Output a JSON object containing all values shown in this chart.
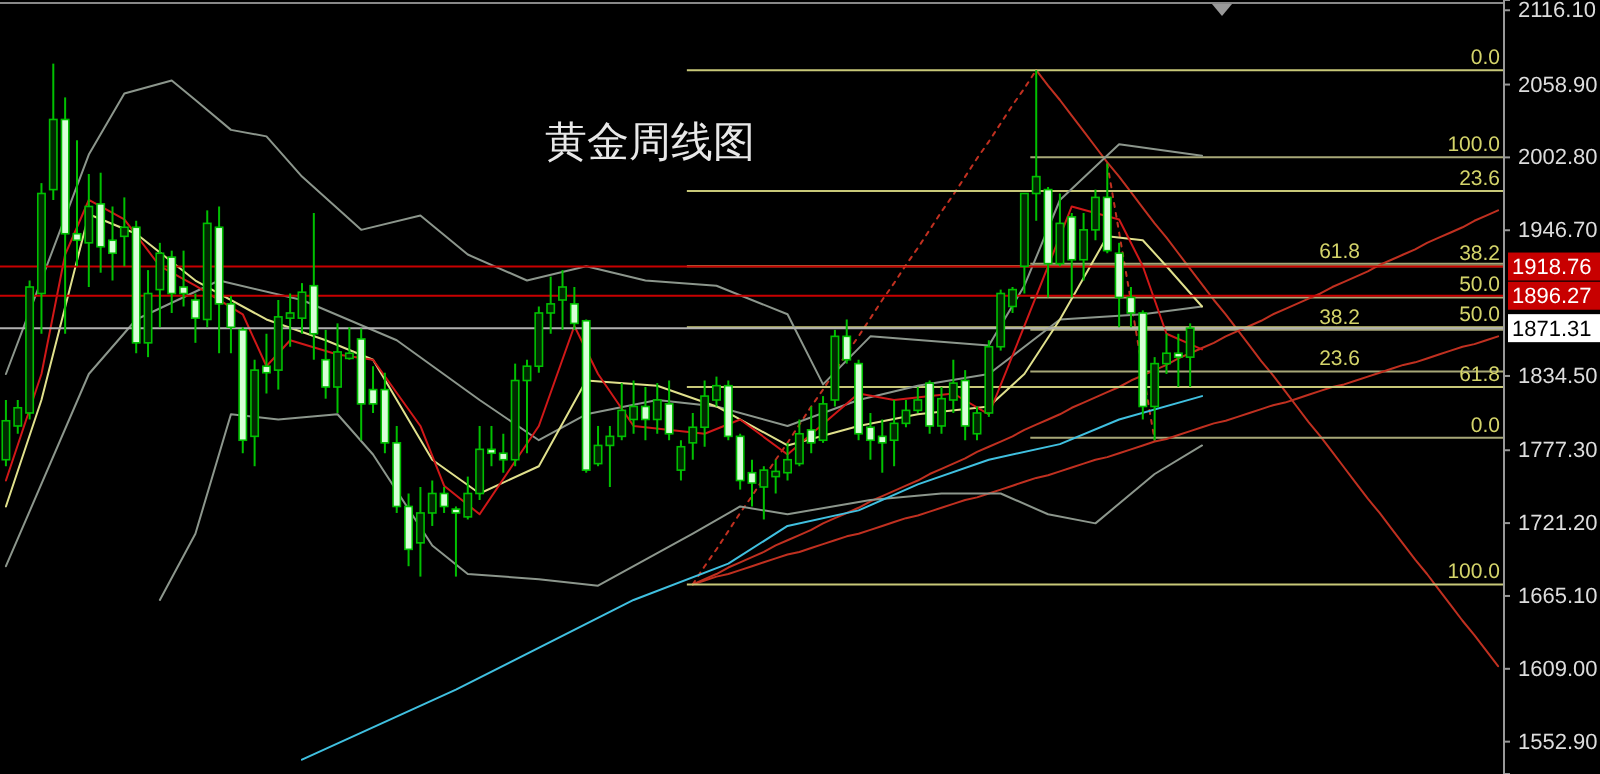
{
  "chart_data": [
    {
      "type": "candlestick",
      "title": "黄金周线图",
      "tick_labels": false,
      "color": "#00c000",
      "ylim": [
        1528,
        2124
      ],
      "categories": [
        null,
        null,
        null,
        null,
        null,
        null,
        null,
        null,
        null,
        null,
        null,
        null,
        null,
        null,
        null,
        null,
        null,
        null,
        null,
        null,
        null,
        null,
        null,
        null,
        null,
        null,
        null,
        null,
        null,
        null,
        null,
        null,
        null,
        null,
        null,
        null,
        null,
        null,
        null,
        null,
        null,
        null,
        null,
        null,
        null,
        null,
        null,
        null,
        null,
        null,
        null,
        null,
        null,
        null,
        null,
        null,
        null,
        null,
        null,
        null,
        null,
        null,
        null,
        null,
        null,
        null,
        null,
        null,
        null,
        null,
        null,
        null,
        null,
        null,
        null,
        null,
        null,
        null,
        null,
        null,
        null,
        null,
        null,
        null,
        null,
        null,
        null,
        null,
        null,
        null,
        null,
        null,
        null,
        null,
        null,
        null,
        null,
        null,
        null,
        null,
        null
      ],
      "ohlc": [
        [
          1770,
          1816,
          1765,
          1800
        ],
        [
          1796,
          1816,
          1790,
          1810
        ],
        [
          1806,
          1908,
          1801,
          1903
        ],
        [
          1898,
          1983,
          1867,
          1975
        ],
        [
          1978,
          2075,
          1970,
          2032
        ],
        [
          2032,
          2049,
          1867,
          1944
        ],
        [
          1944,
          2016,
          1919,
          1939
        ],
        [
          1937,
          1990,
          1903,
          1965
        ],
        [
          1967,
          1991,
          1914,
          1934
        ],
        [
          1939,
          1965,
          1908,
          1929
        ],
        [
          1942,
          1972,
          1919,
          1949
        ],
        [
          1949,
          1954,
          1852,
          1860
        ],
        [
          1860,
          1916,
          1849,
          1898
        ],
        [
          1901,
          1937,
          1872,
          1929
        ],
        [
          1926,
          1931,
          1883,
          1898
        ],
        [
          1903,
          1931,
          1888,
          1898
        ],
        [
          1893,
          1898,
          1860,
          1879
        ],
        [
          1878,
          1962,
          1872,
          1952
        ],
        [
          1949,
          1965,
          1852,
          1890
        ],
        [
          1890,
          1896,
          1852,
          1872
        ],
        [
          1870,
          1872,
          1775,
          1785
        ],
        [
          1788,
          1847,
          1765,
          1839
        ],
        [
          1842,
          1867,
          1821,
          1837
        ],
        [
          1839,
          1893,
          1824,
          1880
        ],
        [
          1879,
          1898,
          1857,
          1883
        ],
        [
          1879,
          1906,
          1867,
          1899
        ],
        [
          1904,
          1960,
          1847,
          1867
        ],
        [
          1847,
          1870,
          1817,
          1826
        ],
        [
          1826,
          1875,
          1806,
          1853
        ],
        [
          1848,
          1872,
          1847,
          1852
        ],
        [
          1863,
          1871,
          1785,
          1813
        ],
        [
          1824,
          1842,
          1806,
          1813
        ],
        [
          1824,
          1837,
          1775,
          1783
        ],
        [
          1783,
          1796,
          1729,
          1734
        ],
        [
          1734,
          1744,
          1688,
          1701
        ],
        [
          1706,
          1749,
          1680,
          1729
        ],
        [
          1729,
          1754,
          1719,
          1744
        ],
        [
          1744,
          1749,
          1729,
          1734
        ],
        [
          1732,
          1734,
          1680,
          1729
        ],
        [
          1726,
          1757,
          1724,
          1744
        ],
        [
          1744,
          1796,
          1739,
          1778
        ],
        [
          1778,
          1796,
          1765,
          1775
        ],
        [
          1775,
          1790,
          1760,
          1770
        ],
        [
          1770,
          1844,
          1765,
          1831
        ],
        [
          1831,
          1847,
          1775,
          1842
        ],
        [
          1842,
          1888,
          1837,
          1883
        ],
        [
          1883,
          1911,
          1867,
          1890
        ],
        [
          1893,
          1916,
          1870,
          1903
        ],
        [
          1890,
          1903,
          1870,
          1875
        ],
        [
          1877,
          1878,
          1760,
          1762
        ],
        [
          1767,
          1796,
          1765,
          1781
        ],
        [
          1781,
          1796,
          1749,
          1788
        ],
        [
          1788,
          1829,
          1785,
          1808
        ],
        [
          1801,
          1831,
          1790,
          1811
        ],
        [
          1811,
          1826,
          1785,
          1801
        ],
        [
          1801,
          1829,
          1790,
          1816
        ],
        [
          1813,
          1831,
          1785,
          1790
        ],
        [
          1762,
          1785,
          1754,
          1780
        ],
        [
          1783,
          1806,
          1770,
          1795
        ],
        [
          1795,
          1831,
          1780,
          1819
        ],
        [
          1816,
          1834,
          1811,
          1827
        ],
        [
          1827,
          1831,
          1785,
          1788
        ],
        [
          1788,
          1790,
          1747,
          1754
        ],
        [
          1760,
          1770,
          1734,
          1752
        ],
        [
          1749,
          1765,
          1724,
          1762
        ],
        [
          1757,
          1770,
          1744,
          1761
        ],
        [
          1760,
          1783,
          1754,
          1770
        ],
        [
          1767,
          1801,
          1765,
          1790
        ],
        [
          1793,
          1811,
          1775,
          1783
        ],
        [
          1785,
          1819,
          1783,
          1813
        ],
        [
          1816,
          1870,
          1811,
          1865
        ],
        [
          1865,
          1878,
          1844,
          1847
        ],
        [
          1844,
          1847,
          1785,
          1790
        ],
        [
          1795,
          1806,
          1770,
          1785
        ],
        [
          1788,
          1801,
          1760,
          1783
        ],
        [
          1785,
          1816,
          1765,
          1798
        ],
        [
          1798,
          1816,
          1795,
          1808
        ],
        [
          1808,
          1826,
          1806,
          1816
        ],
        [
          1829,
          1831,
          1790,
          1796
        ],
        [
          1796,
          1826,
          1790,
          1817
        ],
        [
          1816,
          1847,
          1806,
          1829
        ],
        [
          1831,
          1839,
          1785,
          1796
        ],
        [
          1790,
          1811,
          1785,
          1806
        ],
        [
          1806,
          1862,
          1803,
          1857
        ],
        [
          1857,
          1901,
          1854,
          1898
        ],
        [
          1888,
          1903,
          1883,
          1901
        ],
        [
          1919,
          1975,
          1898,
          1975
        ],
        [
          1975,
          2070,
          1954,
          1988
        ],
        [
          1978,
          1980,
          1895,
          1921
        ],
        [
          1921,
          1975,
          1919,
          1952
        ],
        [
          1957,
          1960,
          1895,
          1924
        ],
        [
          1924,
          1960,
          1908,
          1947
        ],
        [
          1947,
          1978,
          1939,
          1972
        ],
        [
          1972,
          1998,
          1929,
          1931
        ],
        [
          1929,
          1937,
          1872,
          1895
        ],
        [
          1895,
          1903,
          1872,
          1883
        ],
        [
          1883,
          1885,
          1801,
          1811
        ],
        [
          1811,
          1849,
          1785,
          1844
        ],
        [
          1844,
          1867,
          1836,
          1852
        ],
        [
          1852,
          1867,
          1826,
          1849
        ],
        [
          1849,
          1875,
          1826,
          1871.31
        ]
      ]
    },
    {
      "type": "line",
      "tick_labels": "y",
      "ylim": [
        1528,
        2124
      ],
      "yticks": [
        {
          "value": 2116.1,
          "label": "2116.10"
        },
        {
          "value": 2058.9,
          "label": "2058.90"
        },
        {
          "value": 2002.8,
          "label": "2002.80"
        },
        {
          "value": 1946.7,
          "label": "1946.70"
        },
        {
          "value": 1834.5,
          "label": "1834.50"
        },
        {
          "value": 1777.3,
          "label": "1777.30"
        },
        {
          "value": 1721.2,
          "label": "1721.20"
        },
        {
          "value": 1665.1,
          "label": "1665.10"
        },
        {
          "value": 1609.0,
          "label": "1609.00"
        },
        {
          "value": 1552.9,
          "label": "1552.90"
        }
      ],
      "ref_lines": [
        {
          "axis": "y",
          "value": 1918.76,
          "label": "1918.76",
          "color": "#c80000"
        },
        {
          "axis": "y",
          "value": 1896.27,
          "label": "1896.27",
          "color": "#c80000"
        },
        {
          "axis": "y",
          "value": 1871.31,
          "label": "1871.31",
          "color": "#b0b0b0"
        }
      ],
      "categories": [
        null,
        null,
        null,
        null,
        null,
        null,
        null,
        null,
        null,
        null,
        null,
        null,
        null,
        null,
        null,
        null,
        null,
        null,
        null,
        null,
        null,
        null,
        null,
        null,
        null,
        null,
        null,
        null,
        null,
        null,
        null,
        null,
        null,
        null,
        null,
        null,
        null,
        null,
        null,
        null,
        null,
        null,
        null,
        null,
        null,
        null,
        null,
        null,
        null,
        null,
        null,
        null,
        null,
        null,
        null,
        null,
        null,
        null,
        null,
        null,
        null,
        null,
        null,
        null,
        null,
        null,
        null,
        null,
        null,
        null,
        null,
        null,
        null,
        null,
        null,
        null,
        null,
        null,
        null,
        null,
        null,
        null,
        null,
        null,
        null,
        null,
        null,
        null,
        null,
        null,
        null,
        null,
        null,
        null,
        null,
        null,
        null,
        null,
        null,
        null,
        null,
        null,
        null,
        null,
        null,
        null,
        null,
        null,
        null,
        null,
        null,
        null,
        null,
        null,
        null,
        null,
        null,
        null,
        null,
        null,
        null,
        null,
        null,
        null,
        null,
        null,
        null
      ],
      "series": [
        {
          "color": "#8c968c",
          "values": [
            1836,
            null,
            null,
            null,
            null,
            null,
            null,
            2005,
            null,
            null,
            2052,
            null,
            null,
            null,
            2062,
            null,
            2047,
            null,
            null,
            2024,
            null,
            null,
            2019,
            null,
            null,
            1988,
            null,
            null,
            null,
            null,
            1947,
            null,
            null,
            null,
            null,
            1958,
            null,
            null,
            null,
            1928,
            null,
            null,
            null,
            null,
            1908,
            null,
            null,
            null,
            null,
            1919,
            null,
            null,
            null,
            null,
            1908,
            null,
            null,
            null,
            null,
            null,
            1904,
            null,
            null,
            null,
            null,
            null,
            1882,
            null,
            null,
            1828,
            null,
            null,
            null,
            1865,
            null,
            null,
            null,
            null,
            null,
            null,
            null,
            null,
            null,
            1858,
            null,
            null,
            1904,
            null,
            null,
            1970,
            null,
            null,
            null,
            null,
            2013,
            null,
            null,
            null,
            null,
            null,
            null,
            2004,
            null,
            null,
            null,
            null,
            null,
            null,
            null,
            null,
            null,
            null,
            null,
            null,
            null,
            null,
            null,
            null,
            null,
            null,
            null,
            null,
            null,
            null,
            null,
            null,
            null
          ]
        },
        {
          "color": "#8c968c",
          "values": [
            1688,
            null,
            null,
            null,
            null,
            null,
            null,
            1836,
            null,
            null,
            null,
            1878,
            null,
            null,
            null,
            null,
            null,
            null,
            1908,
            null,
            null,
            null,
            null,
            null,
            null,
            1893,
            null,
            null,
            null,
            null,
            null,
            null,
            null,
            1862,
            null,
            null,
            null,
            null,
            null,
            null,
            1816,
            null,
            null,
            null,
            null,
            1785,
            null,
            null,
            null,
            1805,
            null,
            null,
            null,
            null,
            null,
            1816,
            null,
            null,
            null,
            null,
            1811,
            null,
            null,
            null,
            null,
            null,
            1796,
            null,
            null,
            null,
            null,
            null,
            1816,
            null,
            null,
            null,
            null,
            1827,
            null,
            null,
            null,
            null,
            null,
            1836,
            null,
            null,
            null,
            null,
            null,
            1878,
            null,
            null,
            null,
            null,
            null,
            null,
            1882,
            null,
            null,
            null,
            null,
            1888,
            null,
            null,
            null,
            null,
            null,
            null,
            null,
            null,
            null,
            null,
            null,
            null,
            null,
            null,
            null,
            null,
            null,
            null,
            null,
            null,
            null,
            null,
            null,
            null,
            null
          ]
        },
        {
          "color": "#8c968c",
          "values": [
            null,
            null,
            null,
            null,
            null,
            null,
            null,
            null,
            null,
            null,
            null,
            null,
            null,
            1662,
            null,
            null,
            1713,
            null,
            null,
            1805,
            null,
            null,
            null,
            1801,
            null,
            null,
            null,
            null,
            1805,
            null,
            null,
            1774,
            null,
            null,
            null,
            null,
            1704,
            null,
            null,
            1682,
            null,
            null,
            null,
            null,
            null,
            1678,
            null,
            null,
            null,
            null,
            1673,
            null,
            null,
            null,
            null,
            1698,
            null,
            null,
            1713,
            null,
            null,
            null,
            1734,
            null,
            null,
            null,
            1728,
            null,
            null,
            null,
            null,
            null,
            null,
            1739,
            null,
            null,
            null,
            null,
            null,
            1744,
            null,
            null,
            null,
            null,
            1744,
            null,
            null,
            null,
            1728,
            null,
            null,
            null,
            1721,
            null,
            null,
            null,
            null,
            1759,
            null,
            null,
            null,
            1781,
            null,
            null,
            null,
            null,
            null,
            null,
            null,
            null,
            null,
            null,
            null,
            null,
            null,
            null,
            null,
            null,
            null,
            null,
            null,
            null,
            null,
            null,
            null,
            null,
            null
          ]
        },
        {
          "color": "#e0e08c",
          "values": [
            1734,
            null,
            null,
            1816,
            null,
            null,
            null,
            1959,
            null,
            null,
            null,
            1944,
            null,
            null,
            null,
            null,
            1908,
            null,
            null,
            null,
            null,
            null,
            1878,
            null,
            null,
            null,
            null,
            1862,
            null,
            null,
            null,
            1847,
            null,
            null,
            null,
            null,
            1770,
            null,
            null,
            null,
            1744,
            null,
            null,
            null,
            null,
            1765,
            null,
            null,
            null,
            1831,
            null,
            null,
            null,
            null,
            null,
            1827,
            null,
            null,
            null,
            null,
            1811,
            null,
            null,
            null,
            null,
            null,
            1781,
            null,
            null,
            null,
            null,
            null,
            1796,
            null,
            null,
            null,
            null,
            1805,
            null,
            null,
            null,
            null,
            null,
            1811,
            null,
            null,
            1836,
            null,
            null,
            1878,
            null,
            null,
            null,
            1942,
            null,
            null,
            1939,
            null,
            1919,
            null,
            null,
            1888,
            null,
            null,
            null,
            null,
            null,
            null,
            null,
            null,
            null,
            null,
            null,
            null,
            null,
            null,
            null,
            null,
            null,
            null,
            null,
            null,
            null,
            null,
            null,
            null,
            null
          ]
        },
        {
          "color": "#d01818",
          "values": [
            1754,
            null,
            null,
            1836,
            null,
            1928,
            null,
            1970,
            null,
            null,
            1955,
            null,
            null,
            1919,
            null,
            null,
            1904,
            null,
            null,
            null,
            1882,
            null,
            1842,
            null,
            1862,
            null,
            null,
            null,
            1851,
            null,
            null,
            1847,
            null,
            null,
            null,
            1796,
            null,
            1750,
            null,
            null,
            1728,
            null,
            null,
            null,
            null,
            1796,
            null,
            null,
            1873,
            null,
            1836,
            null,
            null,
            1796,
            null,
            null,
            null,
            null,
            null,
            1790,
            null,
            null,
            1801,
            null,
            null,
            null,
            1774,
            null,
            null,
            null,
            null,
            null,
            1821,
            null,
            null,
            1816,
            null,
            null,
            null,
            null,
            1821,
            null,
            null,
            1805,
            null,
            null,
            1873,
            null,
            null,
            null,
            1965,
            null,
            null,
            null,
            1955,
            null,
            1919,
            null,
            1867,
            null,
            null,
            1855,
            null,
            null,
            null,
            null,
            null,
            null,
            null,
            null,
            null,
            null,
            null,
            null,
            null,
            null,
            null,
            null,
            null,
            null,
            null,
            null,
            null,
            null,
            null,
            null,
            null
          ]
        },
        {
          "color": "#40c0e0",
          "values": [
            null,
            null,
            null,
            null,
            null,
            null,
            null,
            null,
            null,
            null,
            null,
            null,
            null,
            null,
            null,
            null,
            null,
            null,
            null,
            null,
            null,
            null,
            null,
            null,
            null,
            1539,
            null,
            null,
            null,
            null,
            null,
            null,
            null,
            null,
            null,
            null,
            null,
            null,
            1593,
            null,
            null,
            null,
            null,
            null,
            null,
            null,
            null,
            null,
            null,
            null,
            null,
            null,
            null,
            1662,
            null,
            null,
            null,
            null,
            null,
            null,
            null,
            1690,
            null,
            null,
            null,
            null,
            1719,
            null,
            null,
            null,
            null,
            null,
            1731,
            null,
            null,
            null,
            null,
            1751,
            null,
            null,
            null,
            null,
            null,
            1770,
            null,
            null,
            null,
            null,
            null,
            1782,
            null,
            null,
            null,
            null,
            1801,
            null,
            null,
            null,
            null,
            null,
            null,
            1819,
            null,
            null,
            null,
            null,
            null,
            null,
            null,
            null,
            null,
            null,
            null,
            null,
            null,
            null,
            null,
            null,
            null,
            null,
            null,
            null,
            null,
            null,
            null,
            null,
            null
          ]
        }
      ]
    },
    {
      "type": "line",
      "tick_labels": false,
      "ylim": [
        1528,
        2124
      ],
      "categories": [
        null,
        null,
        null,
        null,
        null,
        null,
        null,
        null,
        null,
        null,
        null,
        null,
        null,
        null,
        null,
        null,
        null,
        null,
        null,
        null,
        null,
        null,
        null,
        null,
        null,
        null,
        null,
        null,
        null,
        null,
        null,
        null,
        null,
        null,
        null,
        null,
        null,
        null,
        null,
        null,
        null,
        null,
        null,
        null,
        null,
        null,
        null,
        null,
        null,
        null,
        null,
        null,
        null,
        null,
        null,
        null,
        null,
        null,
        null,
        null,
        null,
        null,
        null,
        null,
        null,
        null,
        null,
        null,
        null
      ],
      "ref_lines": [
        {
          "axis": "y",
          "value": 2070,
          "color": "#c8c878"
        },
        {
          "axis": "y",
          "value": 1977,
          "color": "#c8c878"
        },
        {
          "axis": "y",
          "value": 1919,
          "color": "#c8c878"
        },
        {
          "axis": "y",
          "value": 1872,
          "color": "#c8c878"
        },
        {
          "axis": "y",
          "value": 1826,
          "color": "#c8c878"
        },
        {
          "axis": "y",
          "value": 1674,
          "color": "#c8c878"
        }
      ],
      "series": [
        {
          "color": "#c03020",
          "values": [
            1674,
            1678,
            1682,
            1687,
            1691,
            1695,
            1699,
            1704,
            1708,
            1712,
            1716,
            1721,
            1725,
            1729,
            1733,
            1738,
            1742,
            1746,
            1750,
            1754,
            1759,
            1763,
            1767,
            1771,
            1776,
            1780,
            1784,
            1788,
            1793,
            1797,
            1801,
            1805,
            1810,
            1814,
            1818,
            1822,
            1826,
            1831,
            1835,
            1839,
            1843,
            1848,
            1852,
            1856,
            1860,
            1865,
            1869,
            1873,
            1877,
            1882,
            1886,
            1890,
            1894,
            1898,
            1903,
            1907,
            1911,
            1915,
            1920,
            1924,
            1928,
            1932,
            1937,
            1941,
            1945,
            1949,
            1954,
            1958,
            1962
          ]
        },
        {
          "color": "#c03020",
          "values": [
            1674,
            1677,
            1680,
            1682,
            1685,
            1688,
            1691,
            1694,
            1697,
            1699,
            1702,
            1705,
            1708,
            1711,
            1713,
            1716,
            1719,
            1722,
            1725,
            1727,
            1730,
            1733,
            1736,
            1739,
            1741,
            1744,
            1747,
            1750,
            1753,
            1756,
            1758,
            1761,
            1764,
            1767,
            1770,
            1772,
            1775,
            1778,
            1781,
            1784,
            1786,
            1789,
            1792,
            1795,
            1798,
            1800,
            1803,
            1806,
            1809,
            1812,
            1814,
            1817,
            1820,
            1823,
            1826,
            1828,
            1831,
            1834,
            1837,
            1840,
            1843,
            1845,
            1848,
            1851,
            1854,
            1857,
            1859,
            1862,
            1865
          ]
        },
        {
          "color": "#c03020",
          "line_style": "dotted",
          "values": [
            1674,
            1688,
            1701,
            1715,
            1729,
            1742,
            1756,
            1770,
            1783,
            1797,
            1811,
            1824,
            1838,
            1852,
            1865,
            1879,
            1893,
            1906,
            1920,
            1933,
            1947,
            1961,
            1974,
            1988,
            2002,
            2015,
            2029,
            2043,
            2056,
            2070,
            null,
            null,
            null,
            null,
            null,
            null,
            null,
            null,
            null,
            null,
            null,
            null,
            null,
            null,
            null,
            null,
            null,
            null,
            null,
            null,
            null,
            null,
            null,
            null,
            null,
            null,
            null,
            null,
            null,
            null,
            null,
            null,
            null,
            null,
            null,
            null,
            null,
            null,
            null
          ]
        }
      ],
      "annotations": [
        {
          "text": "0.0",
          "y": 2070
        },
        {
          "text": "23.6",
          "y": 1977
        },
        {
          "text": "38.2",
          "y": 1919
        },
        {
          "text": "50.0",
          "y": 1872
        },
        {
          "text": "61.8",
          "y": 1826
        },
        {
          "text": "100.0",
          "y": 1674
        }
      ]
    },
    {
      "type": "line",
      "tick_labels": false,
      "ylim": [
        1528,
        2124
      ],
      "categories": [
        null,
        null,
        null,
        null,
        null,
        null,
        null,
        null,
        null,
        null,
        null,
        null,
        null,
        null,
        null,
        null,
        null,
        null,
        null,
        null,
        null,
        null,
        null,
        null,
        null,
        null,
        null,
        null,
        null,
        null,
        null,
        null,
        null,
        null,
        null,
        null,
        null,
        null,
        null,
        null
      ],
      "ref_lines": [
        {
          "axis": "y",
          "value": 2003,
          "color": "#a8a878"
        },
        {
          "axis": "y",
          "value": 1921,
          "color": "#a8a878"
        },
        {
          "axis": "y",
          "value": 1895,
          "color": "#a8a878"
        },
        {
          "axis": "y",
          "value": 1870,
          "color": "#a8a878"
        },
        {
          "axis": "y",
          "value": 1838,
          "color": "#a8a878"
        },
        {
          "axis": "y",
          "value": 1787,
          "color": "#a8a878"
        }
      ],
      "series": [
        {
          "color": "#c03020",
          "values": [
            2070,
            2058,
            2047,
            2035,
            2023,
            2011,
            1999,
            1988,
            1976,
            1964,
            1952,
            1941,
            1929,
            1917,
            1905,
            1893,
            1882,
            1870,
            1858,
            1846,
            1835,
            1823,
            1811,
            1799,
            1788,
            1776,
            1764,
            1752,
            1740,
            1729,
            1717,
            1705,
            1693,
            1682,
            1670,
            1658,
            1646,
            1635,
            1623,
            1611
          ]
        },
        {
          "color": "#c03020",
          "line_style": "dotted",
          "values": [
            null,
            null,
            null,
            null,
            null,
            null,
            1998,
            1945,
            1892,
            1838,
            1785,
            null,
            null,
            null,
            null,
            null,
            null,
            null,
            null,
            null,
            null,
            null,
            null,
            null,
            null,
            null,
            null,
            null,
            null,
            null,
            null,
            null,
            null,
            null,
            null,
            null,
            null,
            null,
            null,
            null
          ]
        }
      ],
      "annotations": [
        {
          "text": "100.0",
          "y": 2003
        },
        {
          "text": "61.8",
          "y": 1921
        },
        {
          "text": "50.0",
          "y": 1895
        },
        {
          "text": "38.2",
          "y": 1870
        },
        {
          "text": "23.6",
          "y": 1838
        },
        {
          "text": "0.0",
          "y": 1787
        }
      ]
    }
  ]
}
